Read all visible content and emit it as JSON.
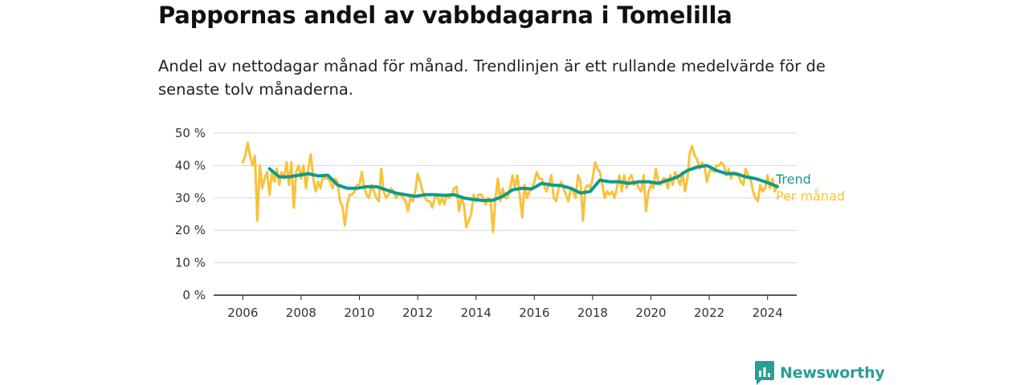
{
  "title": "Pappornas andel av vabbdagarna i Tomelilla",
  "subtitle": "Andel av nettodagar månad för månad. Trendlinjen är ett rullande medelvärde för de senaste tolv månaderna.",
  "brand": "Newsworthy",
  "colors": {
    "monthly": "#f9c23c",
    "trend": "#0f9a8a",
    "grid": "#d6d6d6",
    "axis": "#222222",
    "brand": "#2b9e93"
  },
  "chart_data": {
    "type": "line",
    "x_unit": "year",
    "ylim": [
      0,
      50
    ],
    "y_ticks": [
      {
        "value": 0,
        "label": "0 %"
      },
      {
        "value": 10,
        "label": "10 %"
      },
      {
        "value": 20,
        "label": "20 %"
      },
      {
        "value": 30,
        "label": "30 %"
      },
      {
        "value": 40,
        "label": "40 %"
      },
      {
        "value": 50,
        "label": "50 %"
      }
    ],
    "x_ticks": [
      "2006",
      "2008",
      "2010",
      "2012",
      "2014",
      "2016",
      "2018",
      "2020",
      "2022",
      "2024"
    ],
    "grid": true,
    "series": [
      {
        "name": "Per månad",
        "color": "#f9c23c",
        "x": [
          2006.0,
          2006.083,
          2006.167,
          2006.25,
          2006.333,
          2006.417,
          2006.5,
          2006.583,
          2006.667,
          2006.75,
          2006.833,
          2006.917,
          2007.0,
          2007.083,
          2007.167,
          2007.25,
          2007.333,
          2007.417,
          2007.5,
          2007.583,
          2007.667,
          2007.75,
          2007.833,
          2007.917,
          2008.0,
          2008.083,
          2008.167,
          2008.25,
          2008.333,
          2008.417,
          2008.5,
          2008.583,
          2008.667,
          2008.75,
          2008.833,
          2008.917,
          2009.0,
          2009.083,
          2009.167,
          2009.25,
          2009.333,
          2009.417,
          2009.5,
          2009.583,
          2009.667,
          2009.75,
          2009.833,
          2009.917,
          2010.0,
          2010.083,
          2010.167,
          2010.25,
          2010.333,
          2010.417,
          2010.5,
          2010.583,
          2010.667,
          2010.75,
          2010.833,
          2010.917,
          2011.0,
          2011.083,
          2011.167,
          2011.25,
          2011.333,
          2011.417,
          2011.5,
          2011.583,
          2011.667,
          2011.75,
          2011.833,
          2011.917,
          2012.0,
          2012.083,
          2012.167,
          2012.25,
          2012.333,
          2012.417,
          2012.5,
          2012.583,
          2012.667,
          2012.75,
          2012.833,
          2012.917,
          2013.0,
          2013.083,
          2013.167,
          2013.25,
          2013.333,
          2013.417,
          2013.5,
          2013.583,
          2013.667,
          2013.75,
          2013.833,
          2013.917,
          2014.0,
          2014.083,
          2014.167,
          2014.25,
          2014.333,
          2014.417,
          2014.5,
          2014.583,
          2014.667,
          2014.75,
          2014.833,
          2014.917,
          2015.0,
          2015.083,
          2015.167,
          2015.25,
          2015.333,
          2015.417,
          2015.5,
          2015.583,
          2015.667,
          2015.75,
          2015.833,
          2015.917,
          2016.0,
          2016.083,
          2016.167,
          2016.25,
          2016.333,
          2016.417,
          2016.5,
          2016.583,
          2016.667,
          2016.75,
          2016.833,
          2016.917,
          2017.0,
          2017.083,
          2017.167,
          2017.25,
          2017.333,
          2017.417,
          2017.5,
          2017.583,
          2017.667,
          2017.75,
          2017.833,
          2017.917,
          2018.0,
          2018.083,
          2018.167,
          2018.25,
          2018.333,
          2018.417,
          2018.5,
          2018.583,
          2018.667,
          2018.75,
          2018.833,
          2018.917,
          2019.0,
          2019.083,
          2019.167,
          2019.25,
          2019.333,
          2019.417,
          2019.5,
          2019.583,
          2019.667,
          2019.75,
          2019.833,
          2019.917,
          2020.0,
          2020.083,
          2020.167,
          2020.25,
          2020.333,
          2020.417,
          2020.5,
          2020.583,
          2020.667,
          2020.75,
          2020.833,
          2020.917,
          2021.0,
          2021.083,
          2021.167,
          2021.25,
          2021.333,
          2021.417,
          2021.5,
          2021.583,
          2021.667,
          2021.75,
          2021.833,
          2021.917,
          2022.0,
          2022.083,
          2022.167,
          2022.25,
          2022.333,
          2022.417,
          2022.5,
          2022.583,
          2022.667,
          2022.75,
          2022.833,
          2022.917,
          2023.0,
          2023.083,
          2023.167,
          2023.25,
          2023.333,
          2023.417,
          2023.5,
          2023.583,
          2023.667,
          2023.75,
          2023.833,
          2023.917,
          2024.0,
          2024.083,
          2024.167,
          2024.25,
          2024.333
        ],
        "y": [
          41,
          43,
          47,
          43,
          40,
          43,
          23,
          40,
          33,
          36,
          38,
          31,
          38,
          35,
          39,
          34,
          38,
          36,
          41,
          34,
          41,
          27,
          38,
          40,
          36,
          40,
          33,
          39,
          43.5,
          36,
          32,
          35,
          33,
          37,
          36,
          36,
          35,
          33,
          36,
          35,
          29,
          27.5,
          21.5,
          28,
          31,
          31,
          32,
          34,
          34,
          38,
          33,
          31,
          30,
          34,
          32,
          30,
          29,
          39,
          32,
          30,
          31,
          33,
          32,
          30,
          31,
          31,
          30,
          29,
          26,
          30,
          29,
          32,
          37.5,
          35,
          32,
          30,
          29,
          29,
          27,
          30,
          31,
          28,
          30,
          28,
          31,
          30,
          31,
          33,
          33.5,
          26,
          30,
          28,
          21,
          23,
          25,
          31,
          29,
          31,
          31,
          30,
          28,
          30,
          29.5,
          19.5,
          30,
          36,
          29,
          33,
          30,
          30,
          33,
          37,
          33,
          37,
          31,
          24,
          34,
          30,
          32,
          33,
          35,
          38,
          36,
          36,
          34,
          32,
          34,
          37,
          30,
          29,
          33,
          35,
          33,
          31,
          29,
          33,
          32,
          30,
          37,
          35,
          23,
          33,
          34,
          33,
          36,
          41,
          39,
          38,
          34,
          30,
          32,
          31,
          32,
          30,
          33,
          37,
          32,
          37,
          33,
          36,
          37,
          34,
          35,
          33,
          32,
          37,
          26,
          32,
          34,
          33,
          39,
          35,
          34,
          36,
          36,
          33,
          37,
          34,
          38,
          36,
          34,
          38,
          32,
          36,
          44,
          46,
          43,
          42,
          39,
          41,
          40,
          35,
          38,
          39,
          38,
          40,
          40,
          41,
          40,
          37,
          39,
          36,
          38,
          37,
          37,
          35,
          34,
          39,
          37,
          36,
          32,
          30,
          29,
          34,
          32,
          33,
          37,
          33,
          36,
          32,
          34
        ]
      },
      {
        "name": "Trend",
        "color": "#0f9a8a",
        "x": [
          2006.917,
          2007.25,
          2007.583,
          2007.917,
          2008.25,
          2008.583,
          2008.917,
          2009.25,
          2009.583,
          2009.917,
          2010.25,
          2010.583,
          2010.917,
          2011.25,
          2011.583,
          2011.917,
          2012.25,
          2012.583,
          2012.917,
          2013.25,
          2013.583,
          2013.917,
          2014.25,
          2014.583,
          2014.917,
          2015.25,
          2015.583,
          2015.917,
          2016.25,
          2016.583,
          2016.917,
          2017.25,
          2017.583,
          2017.917,
          2018.25,
          2018.583,
          2018.917,
          2019.25,
          2019.583,
          2019.917,
          2020.25,
          2020.583,
          2020.917,
          2021.25,
          2021.583,
          2021.917,
          2022.25,
          2022.583,
          2022.917,
          2023.25,
          2023.583,
          2023.917,
          2024.25,
          2024.333
        ],
        "y": [
          39,
          36.5,
          36.5,
          37,
          37.5,
          36.8,
          37,
          34,
          33,
          33,
          33.5,
          33.5,
          32.5,
          31.5,
          31,
          30.5,
          31,
          31,
          30.8,
          31,
          30,
          29.5,
          29.2,
          29.3,
          30.5,
          32.5,
          33,
          32.8,
          34.5,
          34,
          33.8,
          33,
          31.5,
          32,
          35.5,
          35,
          35,
          34.5,
          35,
          35,
          34.5,
          35.5,
          36.5,
          38.5,
          39.5,
          40,
          38.5,
          37.5,
          37.5,
          36.5,
          36,
          35,
          33.8,
          33.5
        ]
      }
    ],
    "labels": [
      {
        "series": "Trend",
        "text": "Trend"
      },
      {
        "series": "Per månad",
        "text": "Per månad"
      }
    ]
  }
}
